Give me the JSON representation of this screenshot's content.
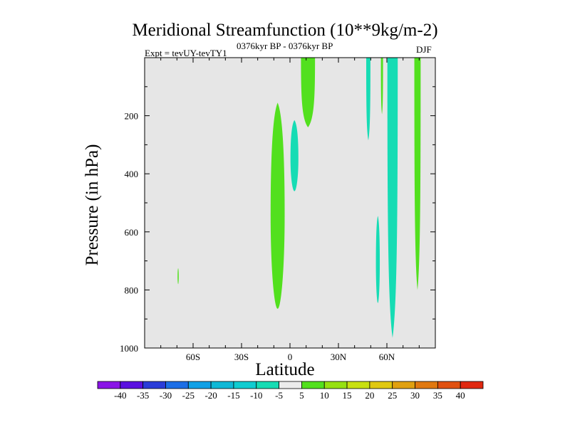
{
  "chart_data": {
    "type": "heatmap",
    "title": "Meridional Streamfunction (10**9kg/m-2)",
    "subtitle_left": "Expt = tevUY-tevTY1",
    "subtitle_center": "0376kyr BP - 0376kyr BP",
    "subtitle_right": "DJF",
    "xlabel": "Latitude",
    "ylabel": "Pressure (in hPa)",
    "xlim": [
      -90,
      90
    ],
    "ylim": [
      1000,
      0
    ],
    "x_ticks": [
      {
        "value": -60,
        "label": "60S"
      },
      {
        "value": -30,
        "label": "30S"
      },
      {
        "value": 0,
        "label": "0"
      },
      {
        "value": 30,
        "label": "30N"
      },
      {
        "value": 60,
        "label": "60N"
      }
    ],
    "y_ticks": [
      {
        "value": 200,
        "label": "200"
      },
      {
        "value": 400,
        "label": "400"
      },
      {
        "value": 600,
        "label": "600"
      },
      {
        "value": 800,
        "label": "800"
      },
      {
        "value": 1000,
        "label": "1000"
      }
    ],
    "background_color": "#e6e6e6",
    "colorbar": {
      "labels": [
        "-40",
        "-35",
        "-30",
        "-25",
        "-20",
        "-15",
        "-10",
        "-5",
        "5",
        "10",
        "15",
        "20",
        "25",
        "30",
        "35",
        "40"
      ],
      "colors": [
        "#8a14e6",
        "#5a10e0",
        "#2a3cd8",
        "#1c6ee6",
        "#10a0e6",
        "#10b8d6",
        "#10ccd0",
        "#16dcb4",
        "#ececec",
        "#52e01e",
        "#96e010",
        "#c8e010",
        "#e0c810",
        "#e0a010",
        "#e07810",
        "#e05010",
        "#e02810"
      ]
    },
    "regions": [
      {
        "name": "positive-5-10-narrow",
        "color": "#52e01e",
        "lat_min": -69.6,
        "lat_max": -68.9,
        "p_min": 725,
        "p_max": 780
      },
      {
        "name": "positive-5-10-tropics",
        "color": "#52e01e",
        "lat_min": -12,
        "lat_max": -3.3,
        "p_min": 155,
        "p_max": 865
      },
      {
        "name": "negative-5-10-equator",
        "color": "#16dcb4",
        "lat_min": 0.3,
        "lat_max": 5.2,
        "p_min": 215,
        "p_max": 460
      },
      {
        "name": "positive-5-10-upper",
        "color": "#52e01e",
        "lat_min": 6.8,
        "lat_max": 15.5,
        "p_min": 0,
        "p_max": 240
      },
      {
        "name": "negative-5-10-45n",
        "color": "#16dcb4",
        "lat_min": 47.2,
        "lat_max": 49.8,
        "p_min": 0,
        "p_max": 285
      },
      {
        "name": "positive-5-10-55n",
        "color": "#52e01e",
        "lat_min": 56.3,
        "lat_max": 57.6,
        "p_min": 0,
        "p_max": 195
      },
      {
        "name": "negative-5-10-55n",
        "color": "#16dcb4",
        "lat_min": 53.2,
        "lat_max": 55.6,
        "p_min": 545,
        "p_max": 845
      },
      {
        "name": "negative-5-10-60n",
        "color": "#16dcb4",
        "lat_min": 60.3,
        "lat_max": 66.7,
        "p_min": 0,
        "p_max": 965
      },
      {
        "name": "positive-5-10-75n",
        "color": "#52e01e",
        "lat_min": 77,
        "lat_max": 80.9,
        "p_min": 0,
        "p_max": 800
      }
    ]
  }
}
